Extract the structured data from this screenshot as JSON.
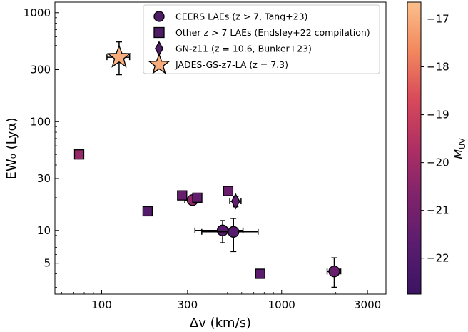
{
  "chart_data": {
    "type": "scatter",
    "xlabel": "Δv (km/s)",
    "ylabel": "EW₀ (Lyα)",
    "xscale": "log",
    "yscale": "log",
    "xlim": [
      55,
      3800
    ],
    "ylim": [
      2.6,
      1250
    ],
    "xticks": [
      100,
      300,
      1000,
      3000
    ],
    "xtick_labels": [
      "100",
      "300",
      "1000",
      "3000"
    ],
    "yticks": [
      5,
      10,
      30,
      100,
      300,
      1000
    ],
    "ytick_labels": [
      "5",
      "10",
      "30",
      "100",
      "300",
      "1000"
    ],
    "grid": false,
    "legend_position": "top-right",
    "colorbar": {
      "label": "M_UV",
      "label_main": "M",
      "label_sub": "UV",
      "range": [
        -16.65,
        -22.75
      ],
      "ticks": [
        -17,
        -18,
        -19,
        -20,
        -21,
        -22
      ],
      "tick_labels": [
        "−17",
        "−18",
        "−19",
        "−20",
        "−21",
        "−22"
      ],
      "colors": [
        "#fbc08c",
        "#f2885e",
        "#d8495a",
        "#ae2f63",
        "#7e236c",
        "#5a1c6e",
        "#3b1462"
      ]
    },
    "series": [
      {
        "name": "CEERS LAEs (z > 7, Tang+23)",
        "marker": "circle",
        "points": [
          {
            "x": 320,
            "y": 19,
            "yerr": [
              2,
              2
            ],
            "xerr": [
              30,
              30
            ],
            "muv": -20.4
          },
          {
            "x": 470,
            "y": 10,
            "yerr": [
              2.3,
              2.3
            ],
            "xerr": [
              140,
              140
            ],
            "muv": -21.8
          },
          {
            "x": 540,
            "y": 9.7,
            "yerr": [
              3.3,
              3.2
            ],
            "xerr": [
              180,
              200
            ],
            "muv": -21.9
          },
          {
            "x": 1960,
            "y": 4.2,
            "yerr": [
              1.2,
              1.4
            ],
            "xerr": [
              170,
              170
            ],
            "muv": -21.4
          }
        ]
      },
      {
        "name": "Other z > 7 LAEs (Endsley+22 compilation)",
        "marker": "square",
        "points": [
          {
            "x": 75,
            "y": 50,
            "muv": -20.2
          },
          {
            "x": 180,
            "y": 15,
            "muv": -21.9
          },
          {
            "x": 280,
            "y": 21,
            "muv": -21.4
          },
          {
            "x": 340,
            "y": 20,
            "muv": -21.5
          },
          {
            "x": 505,
            "y": 23,
            "muv": -21.3
          },
          {
            "x": 760,
            "y": 4,
            "muv": -21.7
          }
        ]
      },
      {
        "name": "GN-z11 (z = 10.6, Bunker+23)",
        "marker": "diamond",
        "points": [
          {
            "x": 555,
            "y": 18.5,
            "yerr": [
              2,
              2
            ],
            "xerr": [
              40,
              40
            ],
            "muv": -21.5
          }
        ]
      },
      {
        "name": "JADES-GS-z7-LA (z = 7.3)",
        "marker": "star",
        "points": [
          {
            "x": 125,
            "y": 390,
            "yerr": [
              120,
              150
            ],
            "xerr": [
              18,
              18
            ],
            "muv": -17.0
          }
        ]
      }
    ],
    "legend": {
      "entries": [
        {
          "marker": "circle",
          "color": "#4f1c66",
          "label": "CEERS LAEs (z > 7, Tang+23)"
        },
        {
          "marker": "square",
          "color": "#4f1c66",
          "label": "Other z > 7 LAEs (Endsley+22 compilation)"
        },
        {
          "marker": "diamond",
          "color": "#4f1c66",
          "label": "GN-z11 (z = 10.6, Bunker+23)"
        },
        {
          "marker": "star",
          "color": "#f8ad7c",
          "label": "JADES-GS-z7-LA (z = 7.3)"
        }
      ]
    }
  }
}
